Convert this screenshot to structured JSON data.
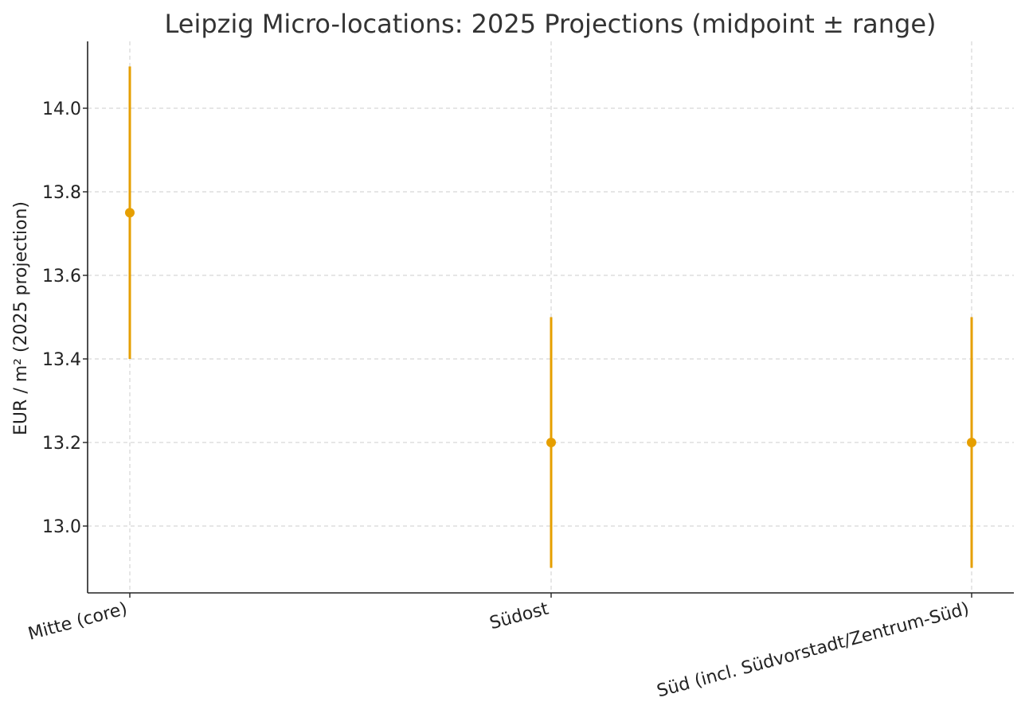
{
  "chart_data": {
    "type": "errorbar",
    "title": "Leipzig Micro-locations: 2025 Projections (midpoint ± range)",
    "xlabel": "",
    "ylabel": "EUR / m² (2025 projection)",
    "categories": [
      "Mitte (core)",
      "Südost",
      "Süd (incl. Südvorstadt/Zentrum-Süd)"
    ],
    "series": [
      {
        "midpoints": [
          13.75,
          13.2,
          13.2
        ],
        "lows": [
          13.4,
          12.9,
          12.9
        ],
        "highs": [
          14.1,
          13.5,
          13.5
        ],
        "color": "#E69F00"
      }
    ],
    "ylim": [
      12.84,
      14.16
    ],
    "yticks": [
      13.0,
      13.2,
      13.4,
      13.6,
      13.8,
      14.0
    ],
    "ytick_labels": [
      "13.0",
      "13.2",
      "13.4",
      "13.6",
      "13.8",
      "14.0"
    ],
    "grid": true,
    "x_tick_rotation_deg": -15
  }
}
